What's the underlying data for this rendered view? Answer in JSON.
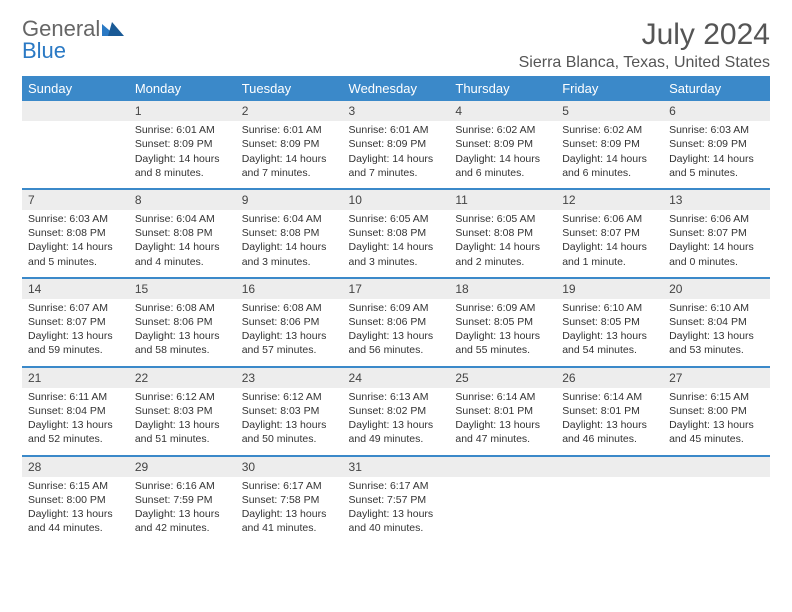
{
  "logo": {
    "text_general": "General",
    "text_blue": "Blue"
  },
  "title": "July 2024",
  "location": "Sierra Blanca, Texas, United States",
  "colors": {
    "header_bg": "#3b89c9",
    "header_fg": "#ffffff",
    "daynum_bg": "#ededed",
    "row_sep": "#3b89c9",
    "logo_gray": "#666666",
    "logo_blue": "#2a79c4",
    "text": "#333333",
    "title_color": "#555555"
  },
  "weekdays": [
    "Sunday",
    "Monday",
    "Tuesday",
    "Wednesday",
    "Thursday",
    "Friday",
    "Saturday"
  ],
  "weeks": [
    [
      {
        "num": "",
        "lines": []
      },
      {
        "num": "1",
        "lines": [
          "Sunrise: 6:01 AM",
          "Sunset: 8:09 PM",
          "Daylight: 14 hours and 8 minutes."
        ]
      },
      {
        "num": "2",
        "lines": [
          "Sunrise: 6:01 AM",
          "Sunset: 8:09 PM",
          "Daylight: 14 hours and 7 minutes."
        ]
      },
      {
        "num": "3",
        "lines": [
          "Sunrise: 6:01 AM",
          "Sunset: 8:09 PM",
          "Daylight: 14 hours and 7 minutes."
        ]
      },
      {
        "num": "4",
        "lines": [
          "Sunrise: 6:02 AM",
          "Sunset: 8:09 PM",
          "Daylight: 14 hours and 6 minutes."
        ]
      },
      {
        "num": "5",
        "lines": [
          "Sunrise: 6:02 AM",
          "Sunset: 8:09 PM",
          "Daylight: 14 hours and 6 minutes."
        ]
      },
      {
        "num": "6",
        "lines": [
          "Sunrise: 6:03 AM",
          "Sunset: 8:09 PM",
          "Daylight: 14 hours and 5 minutes."
        ]
      }
    ],
    [
      {
        "num": "7",
        "lines": [
          "Sunrise: 6:03 AM",
          "Sunset: 8:08 PM",
          "Daylight: 14 hours and 5 minutes."
        ]
      },
      {
        "num": "8",
        "lines": [
          "Sunrise: 6:04 AM",
          "Sunset: 8:08 PM",
          "Daylight: 14 hours and 4 minutes."
        ]
      },
      {
        "num": "9",
        "lines": [
          "Sunrise: 6:04 AM",
          "Sunset: 8:08 PM",
          "Daylight: 14 hours and 3 minutes."
        ]
      },
      {
        "num": "10",
        "lines": [
          "Sunrise: 6:05 AM",
          "Sunset: 8:08 PM",
          "Daylight: 14 hours and 3 minutes."
        ]
      },
      {
        "num": "11",
        "lines": [
          "Sunrise: 6:05 AM",
          "Sunset: 8:08 PM",
          "Daylight: 14 hours and 2 minutes."
        ]
      },
      {
        "num": "12",
        "lines": [
          "Sunrise: 6:06 AM",
          "Sunset: 8:07 PM",
          "Daylight: 14 hours and 1 minute."
        ]
      },
      {
        "num": "13",
        "lines": [
          "Sunrise: 6:06 AM",
          "Sunset: 8:07 PM",
          "Daylight: 14 hours and 0 minutes."
        ]
      }
    ],
    [
      {
        "num": "14",
        "lines": [
          "Sunrise: 6:07 AM",
          "Sunset: 8:07 PM",
          "Daylight: 13 hours and 59 minutes."
        ]
      },
      {
        "num": "15",
        "lines": [
          "Sunrise: 6:08 AM",
          "Sunset: 8:06 PM",
          "Daylight: 13 hours and 58 minutes."
        ]
      },
      {
        "num": "16",
        "lines": [
          "Sunrise: 6:08 AM",
          "Sunset: 8:06 PM",
          "Daylight: 13 hours and 57 minutes."
        ]
      },
      {
        "num": "17",
        "lines": [
          "Sunrise: 6:09 AM",
          "Sunset: 8:06 PM",
          "Daylight: 13 hours and 56 minutes."
        ]
      },
      {
        "num": "18",
        "lines": [
          "Sunrise: 6:09 AM",
          "Sunset: 8:05 PM",
          "Daylight: 13 hours and 55 minutes."
        ]
      },
      {
        "num": "19",
        "lines": [
          "Sunrise: 6:10 AM",
          "Sunset: 8:05 PM",
          "Daylight: 13 hours and 54 minutes."
        ]
      },
      {
        "num": "20",
        "lines": [
          "Sunrise: 6:10 AM",
          "Sunset: 8:04 PM",
          "Daylight: 13 hours and 53 minutes."
        ]
      }
    ],
    [
      {
        "num": "21",
        "lines": [
          "Sunrise: 6:11 AM",
          "Sunset: 8:04 PM",
          "Daylight: 13 hours and 52 minutes."
        ]
      },
      {
        "num": "22",
        "lines": [
          "Sunrise: 6:12 AM",
          "Sunset: 8:03 PM",
          "Daylight: 13 hours and 51 minutes."
        ]
      },
      {
        "num": "23",
        "lines": [
          "Sunrise: 6:12 AM",
          "Sunset: 8:03 PM",
          "Daylight: 13 hours and 50 minutes."
        ]
      },
      {
        "num": "24",
        "lines": [
          "Sunrise: 6:13 AM",
          "Sunset: 8:02 PM",
          "Daylight: 13 hours and 49 minutes."
        ]
      },
      {
        "num": "25",
        "lines": [
          "Sunrise: 6:14 AM",
          "Sunset: 8:01 PM",
          "Daylight: 13 hours and 47 minutes."
        ]
      },
      {
        "num": "26",
        "lines": [
          "Sunrise: 6:14 AM",
          "Sunset: 8:01 PM",
          "Daylight: 13 hours and 46 minutes."
        ]
      },
      {
        "num": "27",
        "lines": [
          "Sunrise: 6:15 AM",
          "Sunset: 8:00 PM",
          "Daylight: 13 hours and 45 minutes."
        ]
      }
    ],
    [
      {
        "num": "28",
        "lines": [
          "Sunrise: 6:15 AM",
          "Sunset: 8:00 PM",
          "Daylight: 13 hours and 44 minutes."
        ]
      },
      {
        "num": "29",
        "lines": [
          "Sunrise: 6:16 AM",
          "Sunset: 7:59 PM",
          "Daylight: 13 hours and 42 minutes."
        ]
      },
      {
        "num": "30",
        "lines": [
          "Sunrise: 6:17 AM",
          "Sunset: 7:58 PM",
          "Daylight: 13 hours and 41 minutes."
        ]
      },
      {
        "num": "31",
        "lines": [
          "Sunrise: 6:17 AM",
          "Sunset: 7:57 PM",
          "Daylight: 13 hours and 40 minutes."
        ]
      },
      {
        "num": "",
        "lines": []
      },
      {
        "num": "",
        "lines": []
      },
      {
        "num": "",
        "lines": []
      }
    ]
  ]
}
